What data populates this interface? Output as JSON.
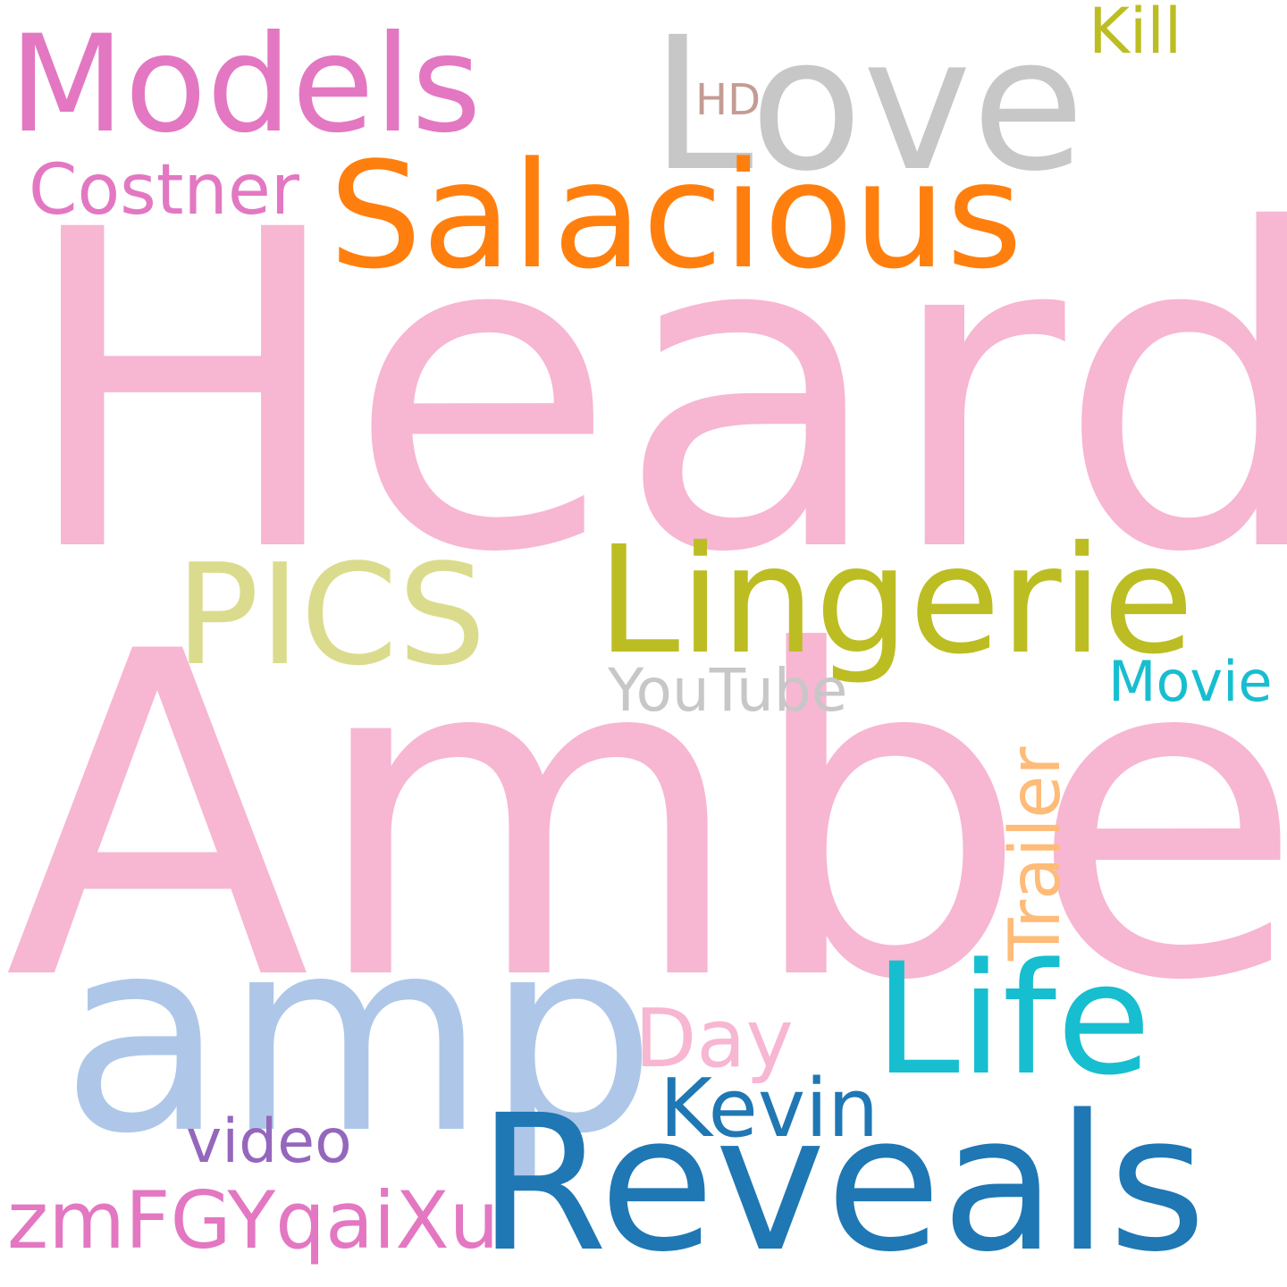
{
  "words": {
    "heard": {
      "text": "Heard",
      "color": "#f7b6d2"
    },
    "amber": {
      "text": "Amber",
      "color": "#f7b6d2"
    },
    "love": {
      "text": "Love",
      "color": "#c7c7c7"
    },
    "models": {
      "text": "Models",
      "color": "#e377c2"
    },
    "salacious": {
      "text": "Salacious",
      "color": "#ff7f0e"
    },
    "costner": {
      "text": "Costner",
      "color": "#e377c2"
    },
    "kill": {
      "text": "Kill",
      "color": "#bcbd22"
    },
    "hd": {
      "text": "HD",
      "color": "#c49c94"
    },
    "pics": {
      "text": "PICS",
      "color": "#dbdb8d"
    },
    "lingerie": {
      "text": "Lingerie",
      "color": "#bcbd22"
    },
    "youtube": {
      "text": "YouTube",
      "color": "#c7c7c7"
    },
    "movie": {
      "text": "Movie",
      "color": "#17becf"
    },
    "trailer": {
      "text": "Trailer",
      "color": "#ffbb78"
    },
    "amp": {
      "text": "amp",
      "color": "#aec7e8"
    },
    "life": {
      "text": "Life",
      "color": "#17becf"
    },
    "day": {
      "text": "Day",
      "color": "#f7b6d2"
    },
    "kevin": {
      "text": "Kevin",
      "color": "#1f77b4"
    },
    "video": {
      "text": "video",
      "color": "#9467bd"
    },
    "reveals": {
      "text": "Reveals",
      "color": "#1f77b4"
    },
    "zmfgyqaixu": {
      "text": "zmFGYqaiXu",
      "color": "#e377c2"
    }
  }
}
